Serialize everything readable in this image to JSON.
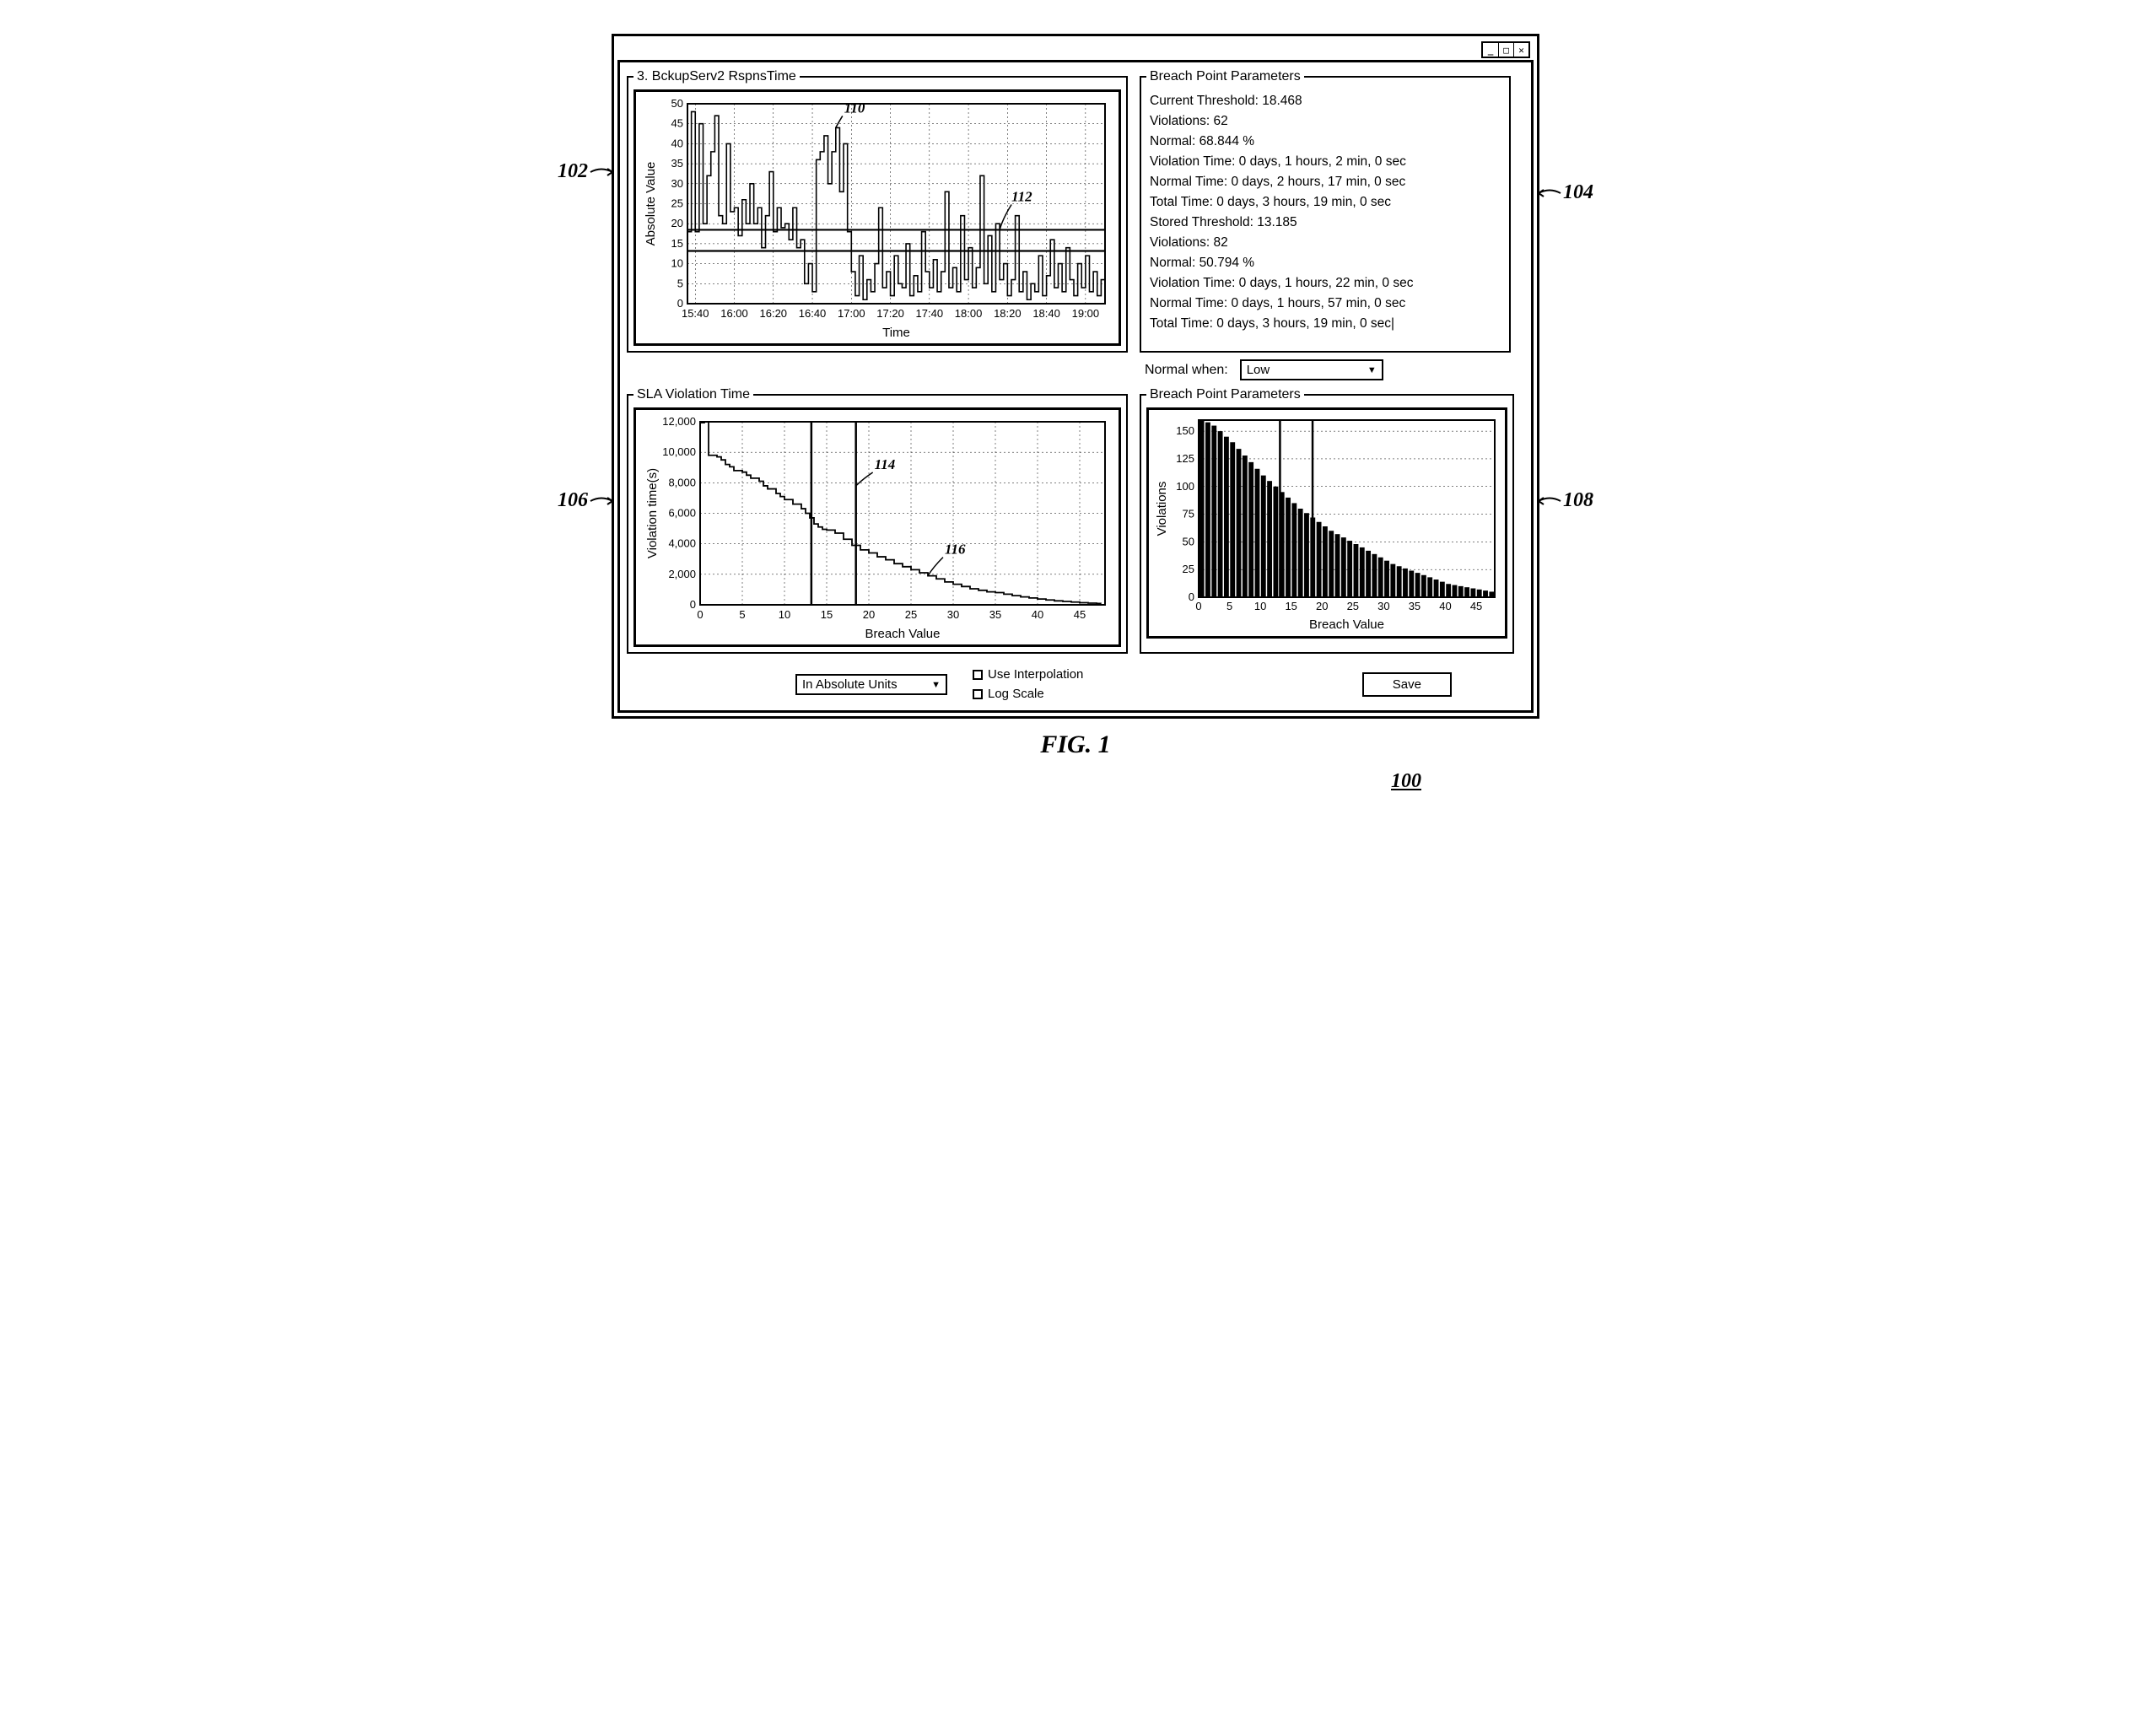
{
  "figure": {
    "caption": "FIG. 1",
    "id": "100"
  },
  "callouts": {
    "c102": "102",
    "c104": "104",
    "c106": "106",
    "c108": "108"
  },
  "annotations": {
    "a110": "110",
    "a112": "112",
    "a114": "114",
    "a116": "116"
  },
  "panel_rspns": {
    "title": "3. BckupServ2 RspnsTime",
    "type": "line",
    "ylabel": "Absolute Value",
    "xlabel": "Time",
    "ylim": [
      0,
      50
    ],
    "ytick_step": 5,
    "xmin": 936,
    "xmax": 1150,
    "xticks": [
      940,
      960,
      980,
      1000,
      1020,
      1040,
      1060,
      1080,
      1100,
      1120,
      1140
    ],
    "xtick_labels": [
      "15:40",
      "16:00",
      "16:20",
      "16:40",
      "17:00",
      "17:20",
      "17:40",
      "18:00",
      "18:20",
      "18:40",
      "19:00"
    ],
    "thresholds": [
      18.468,
      13.185
    ],
    "series_color": "#000000",
    "grid_color": "#000000",
    "background_color": "#ffffff",
    "data": [
      [
        936,
        18
      ],
      [
        938,
        48
      ],
      [
        940,
        18
      ],
      [
        942,
        45
      ],
      [
        944,
        20
      ],
      [
        946,
        32
      ],
      [
        948,
        38
      ],
      [
        950,
        47
      ],
      [
        952,
        22
      ],
      [
        954,
        20
      ],
      [
        956,
        40
      ],
      [
        958,
        23
      ],
      [
        960,
        24
      ],
      [
        962,
        17
      ],
      [
        964,
        26
      ],
      [
        966,
        20
      ],
      [
        968,
        30
      ],
      [
        970,
        20
      ],
      [
        972,
        24
      ],
      [
        974,
        14
      ],
      [
        976,
        22
      ],
      [
        978,
        33
      ],
      [
        980,
        18
      ],
      [
        982,
        24
      ],
      [
        984,
        19
      ],
      [
        986,
        20
      ],
      [
        988,
        16
      ],
      [
        990,
        24
      ],
      [
        992,
        14
      ],
      [
        994,
        16
      ],
      [
        996,
        5
      ],
      [
        998,
        10
      ],
      [
        1000,
        3
      ],
      [
        1002,
        36
      ],
      [
        1004,
        38
      ],
      [
        1006,
        42
      ],
      [
        1008,
        30
      ],
      [
        1010,
        38
      ],
      [
        1012,
        44
      ],
      [
        1014,
        28
      ],
      [
        1016,
        40
      ],
      [
        1018,
        18
      ],
      [
        1020,
        8
      ],
      [
        1022,
        2
      ],
      [
        1024,
        12
      ],
      [
        1026,
        1
      ],
      [
        1028,
        6
      ],
      [
        1030,
        3
      ],
      [
        1032,
        10
      ],
      [
        1034,
        24
      ],
      [
        1036,
        4
      ],
      [
        1038,
        8
      ],
      [
        1040,
        2
      ],
      [
        1042,
        12
      ],
      [
        1044,
        5
      ],
      [
        1046,
        4
      ],
      [
        1048,
        15
      ],
      [
        1050,
        2
      ],
      [
        1052,
        7
      ],
      [
        1054,
        3
      ],
      [
        1056,
        18
      ],
      [
        1058,
        8
      ],
      [
        1060,
        4
      ],
      [
        1062,
        11
      ],
      [
        1064,
        3
      ],
      [
        1066,
        8
      ],
      [
        1068,
        28
      ],
      [
        1070,
        4
      ],
      [
        1072,
        9
      ],
      [
        1074,
        3
      ],
      [
        1076,
        22
      ],
      [
        1078,
        6
      ],
      [
        1080,
        14
      ],
      [
        1082,
        4
      ],
      [
        1084,
        9
      ],
      [
        1086,
        32
      ],
      [
        1088,
        5
      ],
      [
        1090,
        17
      ],
      [
        1092,
        3
      ],
      [
        1094,
        20
      ],
      [
        1096,
        6
      ],
      [
        1098,
        10
      ],
      [
        1100,
        2
      ],
      [
        1102,
        6
      ],
      [
        1104,
        22
      ],
      [
        1106,
        3
      ],
      [
        1108,
        8
      ],
      [
        1110,
        1
      ],
      [
        1112,
        5
      ],
      [
        1114,
        3
      ],
      [
        1116,
        12
      ],
      [
        1118,
        2
      ],
      [
        1120,
        7
      ],
      [
        1122,
        16
      ],
      [
        1124,
        4
      ],
      [
        1126,
        10
      ],
      [
        1128,
        3
      ],
      [
        1130,
        14
      ],
      [
        1132,
        6
      ],
      [
        1134,
        2
      ],
      [
        1136,
        10
      ],
      [
        1138,
        4
      ],
      [
        1140,
        12
      ],
      [
        1142,
        3
      ],
      [
        1144,
        8
      ],
      [
        1146,
        2
      ],
      [
        1148,
        6
      ],
      [
        1150,
        4
      ]
    ]
  },
  "panel_params": {
    "title": "Breach Point Parameters",
    "lines": [
      "Current Threshold: 18.468",
      "Violations: 62",
      "Normal: 68.844 %",
      "Violation Time: 0 days, 1 hours, 2 min, 0 sec",
      "Normal Time: 0 days, 2 hours, 17 min, 0 sec",
      "Total Time: 0 days, 3 hours, 19 min, 0 sec",
      "Stored Threshold: 13.185",
      "Violations: 82",
      "Normal: 50.794 %",
      "Violation Time: 0 days, 1 hours, 22 min, 0 sec",
      "Normal Time: 0 days, 1 hours, 57 min, 0 sec",
      "Total Time: 0 days, 3 hours, 19 min, 0 sec|"
    ]
  },
  "normal_when": {
    "label": "Normal when:",
    "value": "Low"
  },
  "panel_sla": {
    "title": "SLA Violation Time",
    "type": "line",
    "ylabel": "Violation time(s)",
    "xlabel": "Breach Value",
    "ylim": [
      0,
      12000
    ],
    "ytick_step": 2000,
    "xlim": [
      0,
      48
    ],
    "xtick_step": 5,
    "vlines": [
      13.185,
      18.468
    ],
    "grid_color": "#000000",
    "series_color": "#000000",
    "data": [
      [
        0,
        11940
      ],
      [
        0.5,
        11940
      ],
      [
        0.5,
        12000
      ],
      [
        1,
        12000
      ],
      [
        1,
        9800
      ],
      [
        2,
        9700
      ],
      [
        2.5,
        9500
      ],
      [
        3,
        9200
      ],
      [
        3.5,
        9050
      ],
      [
        4,
        9050
      ],
      [
        4,
        8800
      ],
      [
        5,
        8700
      ],
      [
        5.5,
        8500
      ],
      [
        6,
        8300
      ],
      [
        7,
        8100
      ],
      [
        7.5,
        7800
      ],
      [
        8,
        7600
      ],
      [
        9,
        7300
      ],
      [
        9.5,
        7100
      ],
      [
        10,
        6900
      ],
      [
        11,
        6600
      ],
      [
        12,
        6300
      ],
      [
        12.5,
        6000
      ],
      [
        13,
        5700
      ],
      [
        13.5,
        5300
      ],
      [
        14,
        5100
      ],
      [
        14.5,
        4950
      ],
      [
        15,
        4900
      ],
      [
        16,
        4700
      ],
      [
        17,
        4300
      ],
      [
        18,
        3900
      ],
      [
        19,
        3600
      ],
      [
        20,
        3400
      ],
      [
        21,
        3150
      ],
      [
        22,
        2950
      ],
      [
        23,
        2700
      ],
      [
        24,
        2500
      ],
      [
        25,
        2300
      ],
      [
        26,
        2100
      ],
      [
        27,
        1900
      ],
      [
        28,
        1700
      ],
      [
        29,
        1500
      ],
      [
        30,
        1350
      ],
      [
        31,
        1200
      ],
      [
        32,
        1050
      ],
      [
        33,
        950
      ],
      [
        34,
        850
      ],
      [
        35,
        800
      ],
      [
        36,
        700
      ],
      [
        37,
        600
      ],
      [
        38,
        520
      ],
      [
        39,
        450
      ],
      [
        40,
        380
      ],
      [
        41,
        320
      ],
      [
        42,
        260
      ],
      [
        43,
        220
      ],
      [
        44,
        180
      ],
      [
        45,
        140
      ],
      [
        46,
        110
      ],
      [
        47,
        90
      ],
      [
        47.5,
        70
      ]
    ]
  },
  "panel_hist": {
    "title": "Breach Point Parameters",
    "type": "bar",
    "ylabel": "Violations",
    "xlabel": "Breach Value",
    "ylim": [
      0,
      160
    ],
    "ytick_step": 25,
    "xlim": [
      0,
      48
    ],
    "xtick_step": 5,
    "vlines": [
      13.185,
      18.468
    ],
    "bar_color": "#000000",
    "grid_color": "#000000",
    "data": [
      160,
      158,
      155,
      150,
      145,
      140,
      134,
      128,
      122,
      116,
      110,
      105,
      100,
      95,
      90,
      85,
      80,
      76,
      72,
      68,
      64,
      60,
      57,
      54,
      51,
      48,
      45,
      42,
      39,
      36,
      33,
      30,
      28,
      26,
      24,
      22,
      20,
      18,
      16,
      14,
      12,
      11,
      10,
      9,
      8,
      7,
      6,
      5
    ]
  },
  "controls": {
    "units_select": "In Absolute Units",
    "use_interpolation": "Use Interpolation",
    "log_scale": "Log Scale",
    "save": "Save"
  }
}
